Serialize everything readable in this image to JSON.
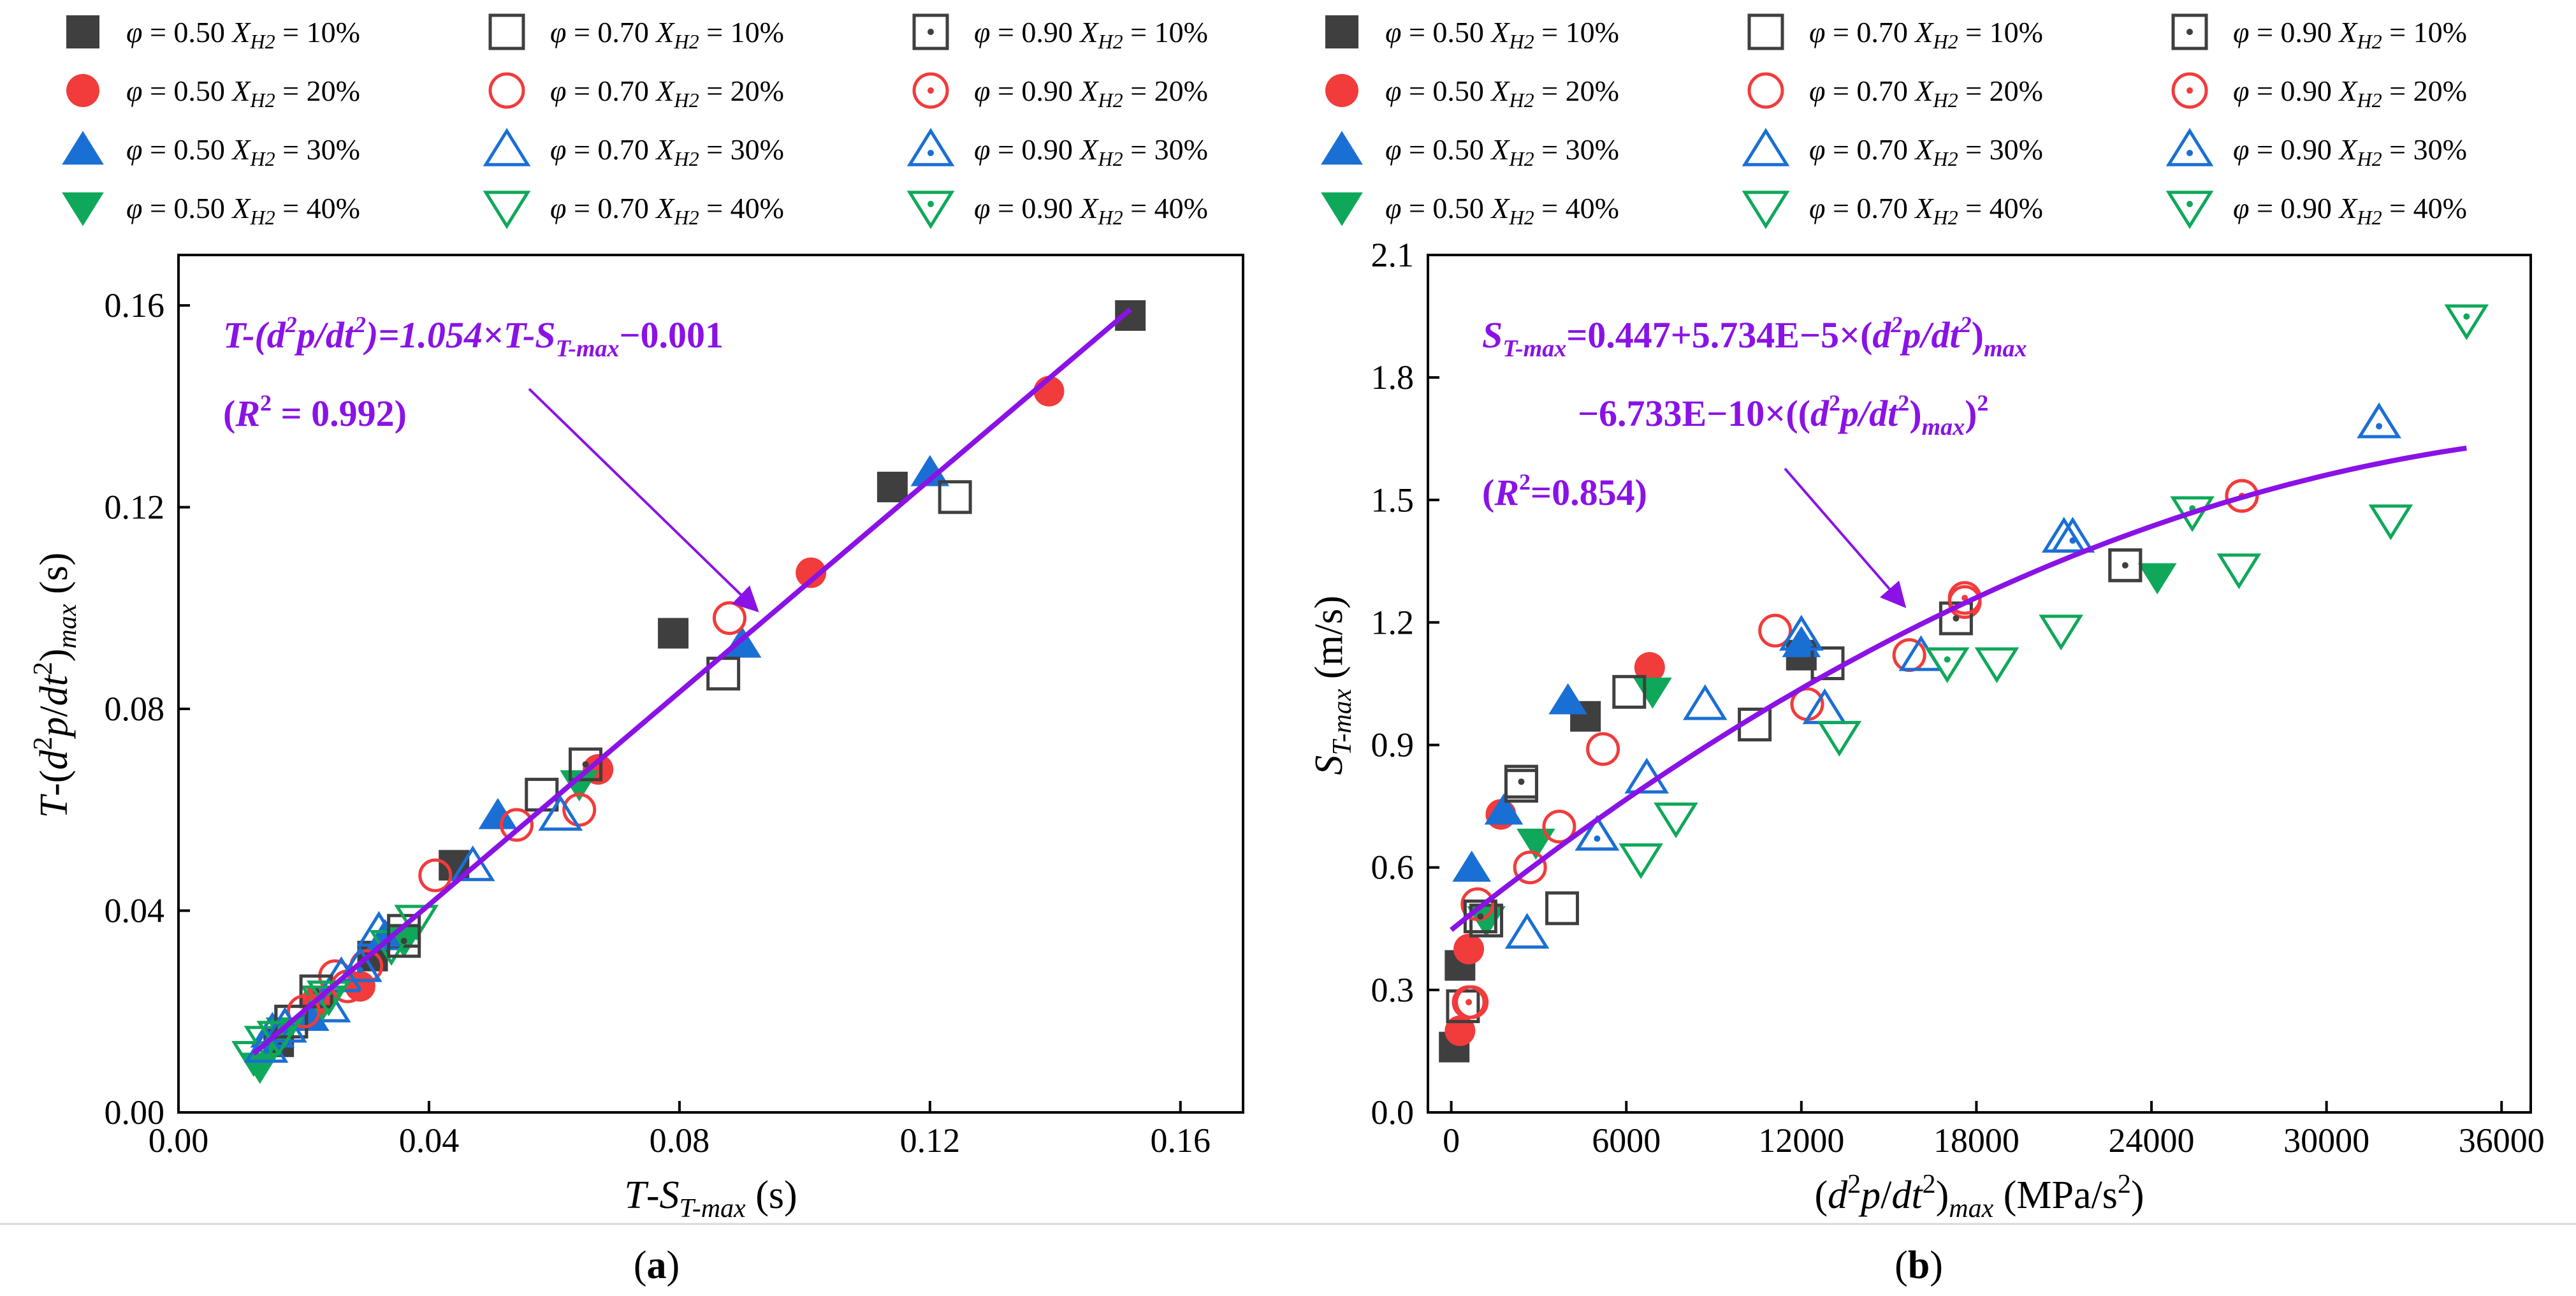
{
  "chart_data": [
    {
      "type": "scatter",
      "panel_label": "(a)",
      "xlabel": "T-S_{T-max} (s)",
      "ylabel": "T-(d^2p/dt^2)_max (s)",
      "xlim": [
        0.0,
        0.17
      ],
      "ylim": [
        0.0,
        0.17
      ],
      "xticks": [
        "0.00",
        "0.04",
        "0.08",
        "0.12",
        "0.16"
      ],
      "yticks": [
        "0.00",
        "0.04",
        "0.08",
        "0.12",
        "0.16"
      ],
      "fit_equation": "T-(d²p/dt²)=1.054×T-S_{T-max}−0.001",
      "fit_r2": "(R² = 0.992)",
      "fit": {
        "slope": 1.054,
        "intercept": -0.001,
        "x_range": [
          0.012,
          0.152
        ]
      },
      "series": [
        {
          "key": "p50h10",
          "points": [
            [
              0.152,
              0.158
            ],
            [
              0.114,
              0.124
            ],
            [
              0.079,
              0.095
            ],
            [
              0.044,
              0.049
            ],
            [
              0.031,
              0.031
            ],
            [
              0.016,
              0.014
            ]
          ]
        },
        {
          "key": "p50h20",
          "points": [
            [
              0.139,
              0.143
            ],
            [
              0.101,
              0.107
            ],
            [
              0.067,
              0.068
            ],
            [
              0.029,
              0.025
            ],
            [
              0.022,
              0.022
            ]
          ]
        },
        {
          "key": "p50h30",
          "points": [
            [
              0.12,
              0.127
            ],
            [
              0.09,
              0.093
            ],
            [
              0.051,
              0.059
            ],
            [
              0.033,
              0.035
            ],
            [
              0.021,
              0.019
            ]
          ]
        },
        {
          "key": "p50h40",
          "points": [
            [
              0.064,
              0.065
            ],
            [
              0.036,
              0.034
            ],
            [
              0.013,
              0.009
            ],
            [
              0.017,
              0.016
            ]
          ]
        },
        {
          "key": "p70h10",
          "points": [
            [
              0.124,
              0.122
            ],
            [
              0.087,
              0.087
            ],
            [
              0.058,
              0.063
            ],
            [
              0.036,
              0.036
            ],
            [
              0.018,
              0.018
            ]
          ]
        },
        {
          "key": "p70h20",
          "points": [
            [
              0.088,
              0.098
            ],
            [
              0.064,
              0.06
            ],
            [
              0.054,
              0.057
            ],
            [
              0.041,
              0.047
            ],
            [
              0.025,
              0.027
            ],
            [
              0.03,
              0.029
            ]
          ]
        },
        {
          "key": "p70h30",
          "points": [
            [
              0.061,
              0.059
            ],
            [
              0.047,
              0.049
            ],
            [
              0.032,
              0.036
            ],
            [
              0.026,
              0.027
            ],
            [
              0.024,
              0.021
            ],
            [
              0.015,
              0.016
            ]
          ]
        },
        {
          "key": "p70h40",
          "points": [
            [
              0.038,
              0.038
            ],
            [
              0.034,
              0.033
            ],
            [
              0.023,
              0.022
            ],
            [
              0.014,
              0.014
            ],
            [
              0.012,
              0.011
            ]
          ]
        },
        {
          "key": "p90h10",
          "points": [
            [
              0.065,
              0.069
            ],
            [
              0.036,
              0.034
            ],
            [
              0.022,
              0.024
            ],
            [
              0.018,
              0.018
            ]
          ]
        },
        {
          "key": "p90h20",
          "points": [
            [
              0.027,
              0.025
            ],
            [
              0.02,
              0.02
            ]
          ]
        },
        {
          "key": "p90h30",
          "points": [
            [
              0.029,
              0.029
            ],
            [
              0.017,
              0.017
            ],
            [
              0.014,
              0.013
            ]
          ]
        },
        {
          "key": "p90h40",
          "points": [
            [
              0.024,
              0.023
            ],
            [
              0.016,
              0.015
            ]
          ]
        }
      ]
    },
    {
      "type": "scatter",
      "panel_label": "(b)",
      "xlabel": "(d^2p/dt^2)_max (MPa/s^2)",
      "ylabel": "S_{T-max} (m/s)",
      "xlim": [
        -800,
        37000
      ],
      "ylim": [
        0.0,
        2.1
      ],
      "xticks": [
        "0",
        "6000",
        "12000",
        "18000",
        "24000",
        "30000",
        "36000"
      ],
      "yticks": [
        "0.0",
        "0.3",
        "0.6",
        "0.9",
        "1.2",
        "1.5",
        "1.8",
        "2.1"
      ],
      "fit_equation_1": "S_{T-max}=0.447+5.734E−5×(d²p/dt²)_max",
      "fit_equation_2": "−6.733E−10×((d²p/dt²)_max)²",
      "fit_r2": "(R²=0.854)",
      "fit": {
        "a": 0.447,
        "b": 5.734e-05,
        "c": -6.733e-10,
        "x_range": [
          0,
          34800
        ]
      },
      "series": [
        {
          "key": "p50h10",
          "points": [
            [
              100,
              0.16
            ],
            [
              300,
              0.36
            ],
            [
              4600,
              0.97
            ],
            [
              12000,
              1.12
            ]
          ]
        },
        {
          "key": "p50h20",
          "points": [
            [
              300,
              0.2
            ],
            [
              600,
              0.4
            ],
            [
              1700,
              0.73
            ],
            [
              6800,
              1.09
            ]
          ]
        },
        {
          "key": "p50h30",
          "points": [
            [
              700,
              0.6
            ],
            [
              1800,
              0.74
            ],
            [
              4000,
              1.01
            ],
            [
              12000,
              1.15
            ]
          ]
        },
        {
          "key": "p50h40",
          "points": [
            [
              1200,
              0.47
            ],
            [
              2900,
              0.66
            ],
            [
              6900,
              1.03
            ],
            [
              24200,
              1.31
            ]
          ]
        },
        {
          "key": "p70h10",
          "points": [
            [
              400,
              0.26
            ],
            [
              1200,
              0.47
            ],
            [
              2400,
              0.8
            ],
            [
              3800,
              0.5
            ],
            [
              6100,
              1.03
            ],
            [
              10400,
              0.95
            ],
            [
              12900,
              1.1
            ],
            [
              23100,
              1.34
            ]
          ]
        },
        {
          "key": "p70h20",
          "points": [
            [
              700,
              0.27
            ],
            [
              900,
              0.51
            ],
            [
              2700,
              0.6
            ],
            [
              3700,
              0.7
            ],
            [
              5200,
              0.89
            ],
            [
              11100,
              1.18
            ],
            [
              12200,
              1.0
            ],
            [
              15700,
              1.12
            ],
            [
              17600,
              1.25
            ],
            [
              27100,
              1.51
            ]
          ]
        },
        {
          "key": "p70h30",
          "points": [
            [
              2600,
              0.44
            ],
            [
              5000,
              0.68
            ],
            [
              6700,
              0.82
            ],
            [
              8700,
              1.0
            ],
            [
              12000,
              1.17
            ],
            [
              12800,
              0.99
            ],
            [
              16100,
              1.12
            ],
            [
              21000,
              1.41
            ],
            [
              31800,
              1.69
            ]
          ]
        },
        {
          "key": "p70h40",
          "points": [
            [
              6500,
              0.62
            ],
            [
              7700,
              0.72
            ],
            [
              13300,
              0.92
            ],
            [
              18700,
              1.1
            ],
            [
              20900,
              1.18
            ],
            [
              27000,
              1.33
            ],
            [
              32200,
              1.45
            ]
          ]
        },
        {
          "key": "p90h10",
          "points": [
            [
              1000,
              0.48
            ],
            [
              2400,
              0.81
            ],
            [
              17300,
              1.21
            ],
            [
              23100,
              1.34
            ]
          ]
        },
        {
          "key": "p90h20",
          "points": [
            [
              600,
              0.27
            ],
            [
              17600,
              1.26
            ],
            [
              27100,
              1.51
            ]
          ]
        },
        {
          "key": "p90h30",
          "points": [
            [
              5000,
              0.68
            ],
            [
              21300,
              1.41
            ],
            [
              31800,
              1.69
            ]
          ]
        },
        {
          "key": "p90h40",
          "points": [
            [
              17000,
              1.1
            ],
            [
              25400,
              1.47
            ],
            [
              34800,
              1.94
            ]
          ]
        }
      ]
    }
  ],
  "legend": [
    {
      "key": "p50h10",
      "marker": "square-filled",
      "color": "#3f3f3f",
      "phi": "0.50",
      "xh2": "10%"
    },
    {
      "key": "p50h20",
      "marker": "circle-filled",
      "color": "#f23b3b",
      "phi": "0.50",
      "xh2": "20%"
    },
    {
      "key": "p50h30",
      "marker": "triup-filled",
      "color": "#1a6fd4",
      "phi": "0.50",
      "xh2": "30%"
    },
    {
      "key": "p50h40",
      "marker": "tridown-filled",
      "color": "#0fa85a",
      "phi": "0.50",
      "xh2": "40%"
    },
    {
      "key": "p70h10",
      "marker": "square-open",
      "color": "#3f3f3f",
      "phi": "0.70",
      "xh2": "10%"
    },
    {
      "key": "p70h20",
      "marker": "circle-open",
      "color": "#f23b3b",
      "phi": "0.70",
      "xh2": "20%"
    },
    {
      "key": "p70h30",
      "marker": "triup-open",
      "color": "#1a6fd4",
      "phi": "0.70",
      "xh2": "30%"
    },
    {
      "key": "p70h40",
      "marker": "tridown-open",
      "color": "#0fa85a",
      "phi": "0.70",
      "xh2": "40%"
    },
    {
      "key": "p90h10",
      "marker": "square-dot",
      "color": "#3f3f3f",
      "phi": "0.90",
      "xh2": "10%"
    },
    {
      "key": "p90h20",
      "marker": "circle-dot",
      "color": "#f23b3b",
      "phi": "0.90",
      "xh2": "20%"
    },
    {
      "key": "p90h30",
      "marker": "triup-dot",
      "color": "#1a6fd4",
      "phi": "0.90",
      "xh2": "30%"
    },
    {
      "key": "p90h40",
      "marker": "tridown-dot",
      "color": "#0fa85a",
      "phi": "0.90",
      "xh2": "40%"
    }
  ],
  "colors": {
    "fit_line": "#8a12e6",
    "annotation": "#8a12e6"
  }
}
